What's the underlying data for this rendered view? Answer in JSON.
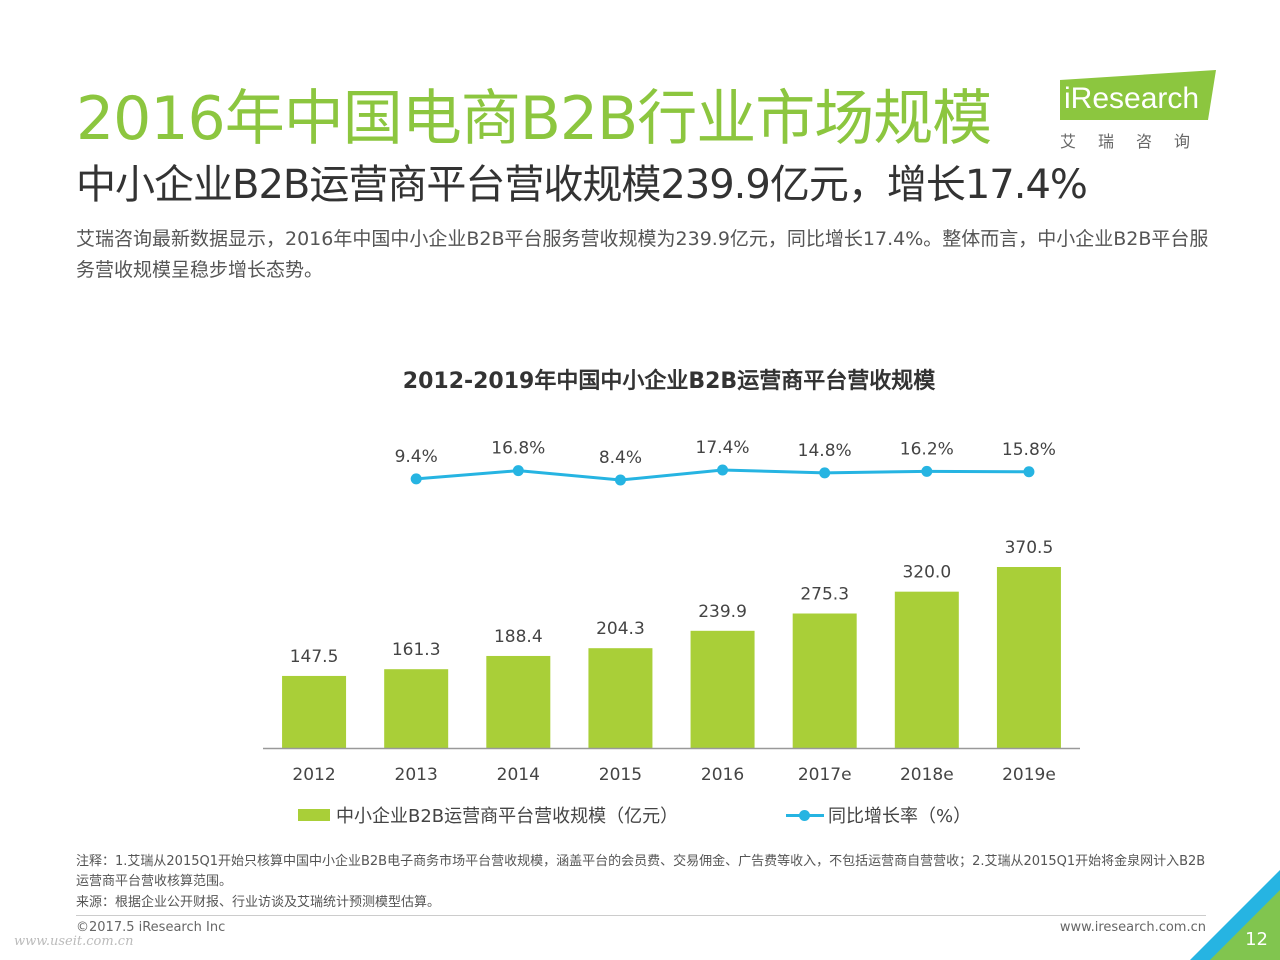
{
  "header": {
    "title": "2016年中国电商B2B行业市场规模",
    "subtitle": "中小企业B2B运营商平台营收规模239.9亿元，增长17.4%",
    "description": "艾瑞咨询最新数据显示，2016年中国中小企业B2B平台服务营收规模为239.9亿元，同比增长17.4%。整体而言，中小企业B2B平台服务营收规模呈稳步增长态势。"
  },
  "logo": {
    "brand": "iResearch",
    "cn": "艾瑞咨询",
    "color": "#8cc63f"
  },
  "chart_data": {
    "type": "bar",
    "title": "2012-2019年中国中小企业B2B运营商平台营收规模",
    "categories": [
      "2012",
      "2013",
      "2014",
      "2015",
      "2016",
      "2017e",
      "2018e",
      "2019e"
    ],
    "series": [
      {
        "name": "中小企业B2B运营商平台营收规模（亿元）",
        "type": "bar",
        "color": "#a9cf38",
        "values": [
          147.5,
          161.3,
          188.4,
          204.3,
          239.9,
          275.3,
          320.0,
          370.5
        ],
        "labels": [
          "147.5",
          "161.3",
          "188.4",
          "204.3",
          "239.9",
          "275.3",
          "320.0",
          "370.5"
        ]
      },
      {
        "name": "同比增长率（%）",
        "type": "line",
        "color": "#26b4e2",
        "values": [
          9.4,
          16.8,
          8.4,
          17.4,
          14.8,
          16.2,
          15.8
        ],
        "x": [
          "2013",
          "2014",
          "2015",
          "2016",
          "2017e",
          "2018e",
          "2019e"
        ],
        "labels": [
          "9.4%",
          "16.8%",
          "8.4%",
          "17.4%",
          "14.8%",
          "16.2%",
          "15.8%"
        ]
      }
    ],
    "legend_position": "bottom",
    "grid": false
  },
  "notes": {
    "note": "注释：1.艾瑞从2015Q1开始只核算中国中小企业B2B电子商务市场平台营收规模，涵盖平台的会员费、交易佣金、广告费等收入，不包括运营商自营营收；2.艾瑞从2015Q1开始将金泉网计入B2B运营商平台营收核算范围。",
    "source": "来源：根据企业公开财报、行业访谈及艾瑞统计预测模型估算。"
  },
  "footer": {
    "copyright": "©2017.5 iResearch Inc",
    "website": "www.iresearch.com.cn",
    "page": "12",
    "watermark": "www.useit.com.cn"
  }
}
